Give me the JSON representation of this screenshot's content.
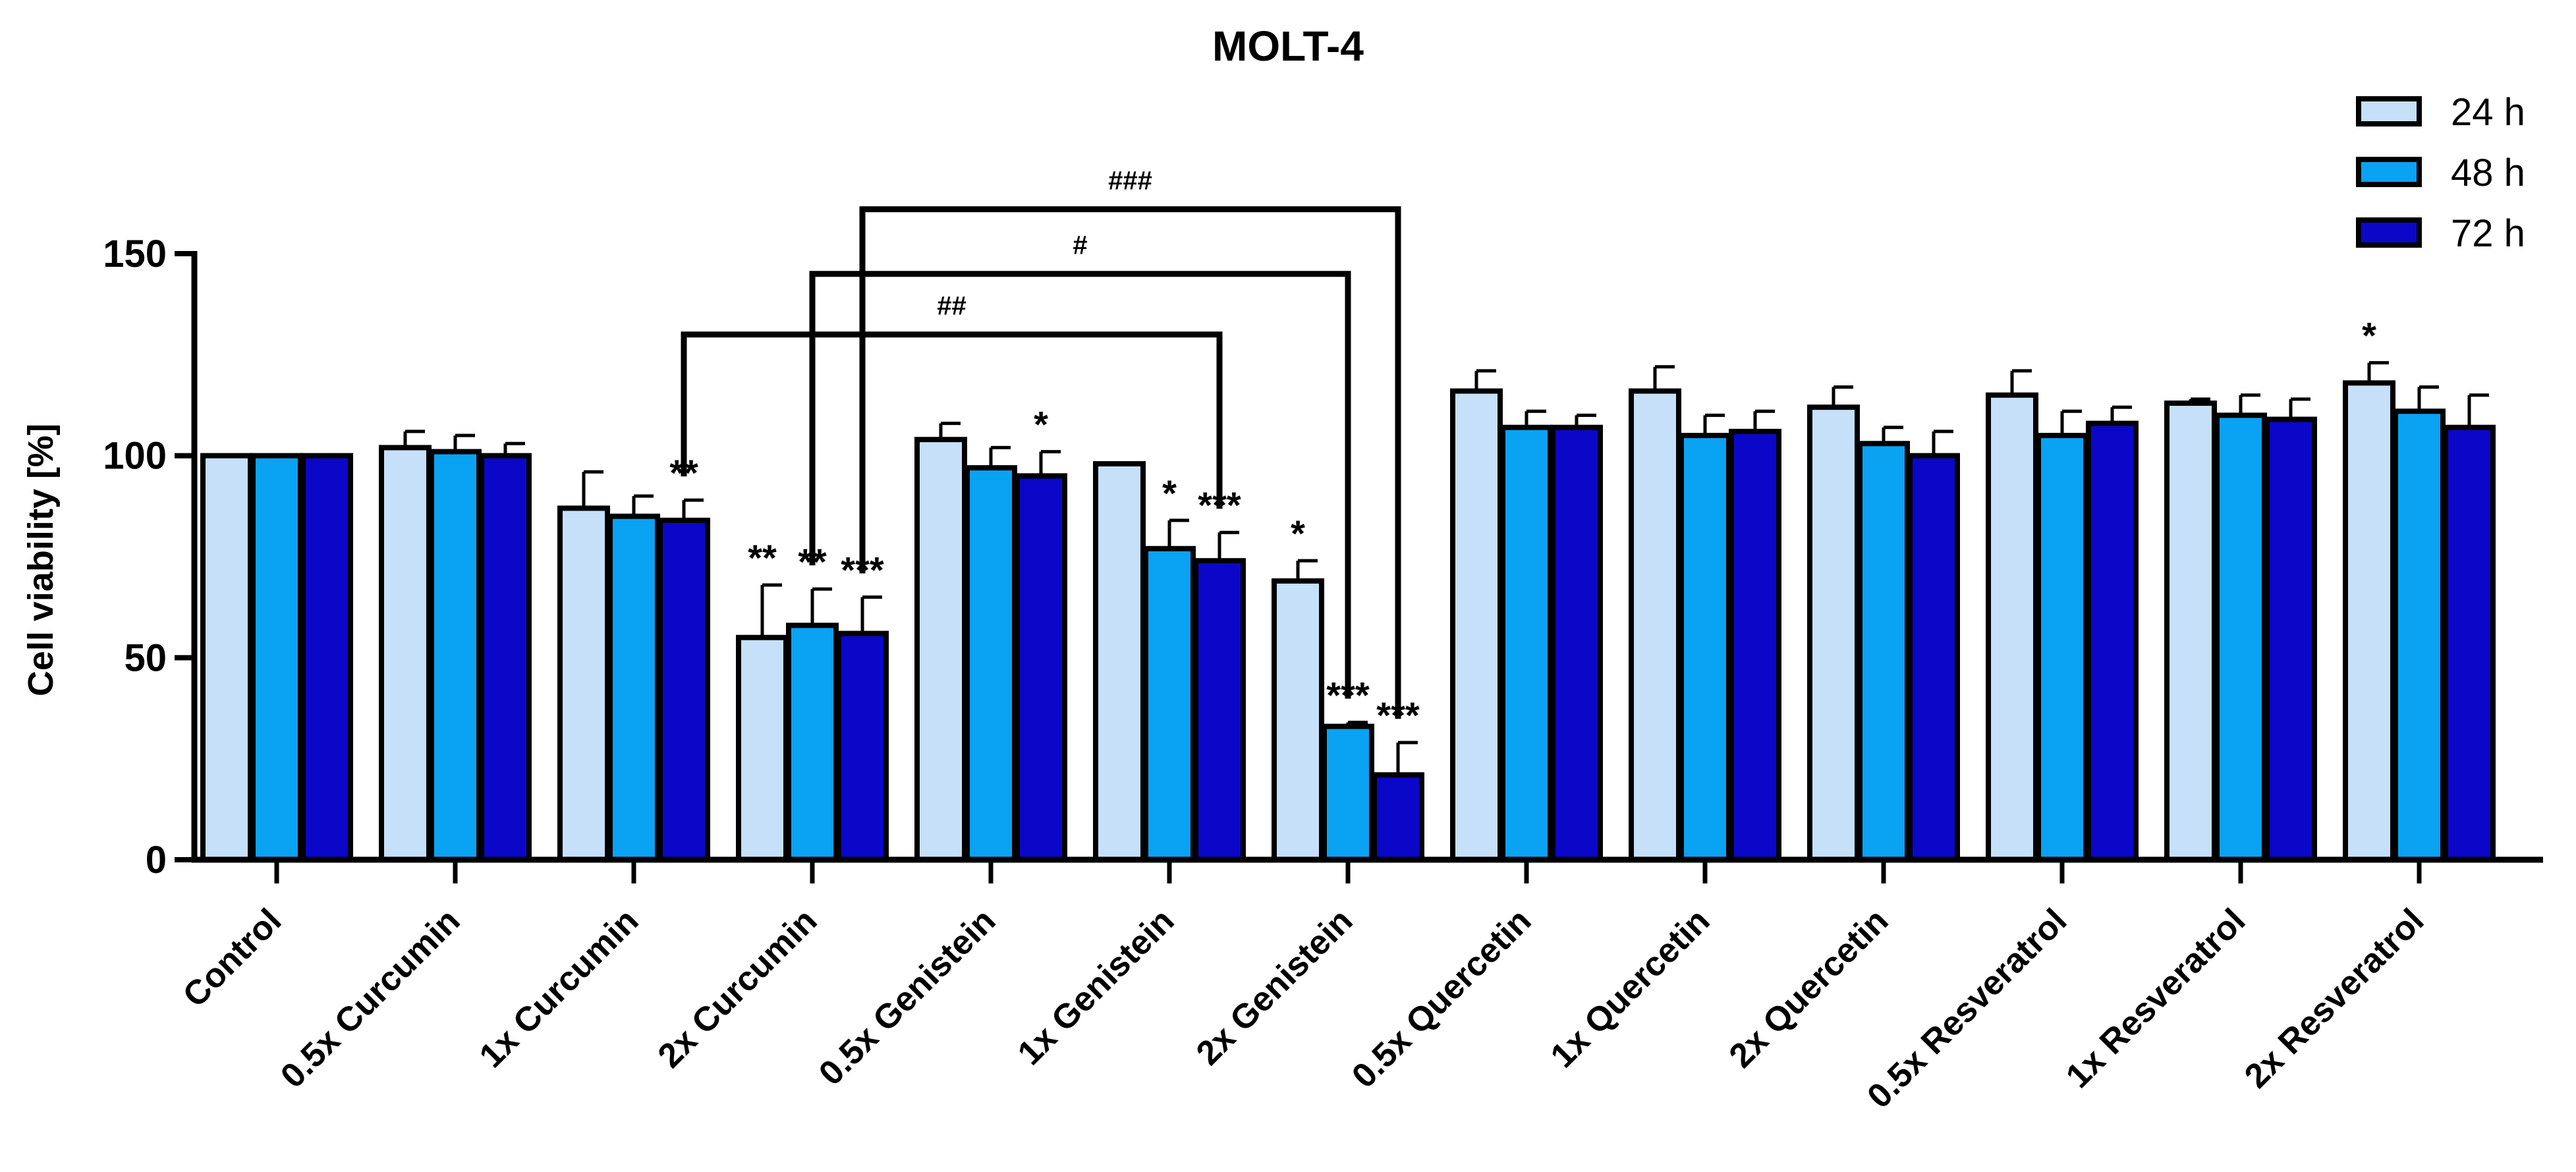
{
  "chart_data": {
    "type": "bar",
    "title": "MOLT-4",
    "xlabel": "",
    "ylabel": "Cell viability [%]",
    "ylim": [
      0,
      150
    ],
    "yticks": [
      0,
      50,
      100,
      150
    ],
    "grid": false,
    "legend_position": "top-right",
    "categories": [
      "Control",
      "0.5x Curcumin",
      "1x Curcumin",
      "2x Curcumin",
      "0.5x Genistein",
      "1x Genistein",
      "2x Genistein",
      "0.5x Quercetin",
      "1x Quercetin",
      "2x Quercetin",
      "0.5x Resveratrol",
      "1x Resveratrol",
      "2x Resveratrol"
    ],
    "series": [
      {
        "name": "24 h",
        "color": "#c6e0fa",
        "values": [
          100,
          102,
          87,
          55,
          104,
          98,
          69,
          116,
          116,
          112,
          115,
          113,
          118
        ],
        "errors": [
          0,
          4,
          9,
          13,
          4,
          0,
          5,
          5,
          6,
          5,
          6,
          1,
          5
        ],
        "significance": [
          "",
          "",
          "",
          "**",
          "",
          "",
          "*",
          "",
          "",
          "",
          "",
          "",
          "*"
        ]
      },
      {
        "name": "48 h",
        "color": "#0aa2f2",
        "values": [
          100,
          101,
          85,
          58,
          97,
          77,
          33,
          107,
          105,
          103,
          105,
          110,
          111
        ],
        "errors": [
          0,
          4,
          5,
          9,
          5,
          7,
          1,
          4,
          5,
          4,
          6,
          5,
          6
        ],
        "significance": [
          "",
          "",
          "",
          "**",
          "",
          "*",
          "***",
          "",
          "",
          "",
          "",
          "",
          ""
        ]
      },
      {
        "name": "72 h",
        "color": "#0b07c9",
        "values": [
          100,
          100,
          84,
          56,
          95,
          74,
          21,
          107,
          106,
          100,
          108,
          109,
          107
        ],
        "errors": [
          0,
          3,
          5,
          9,
          6,
          7,
          8,
          3,
          5,
          6,
          4,
          5,
          8
        ],
        "significance": [
          "",
          "",
          "**",
          "***",
          "*",
          "***",
          "***",
          "",
          "",
          "",
          "",
          "",
          ""
        ]
      }
    ],
    "comparisons": [
      {
        "from": "1x Curcumin",
        "from_series": "72 h",
        "to": "1x Genistein",
        "to_series": "72 h",
        "label": "##",
        "level": 130
      },
      {
        "from": "2x Curcumin",
        "from_series": "48 h",
        "to": "2x Genistein",
        "to_series": "48 h",
        "label": "#",
        "level": 145
      },
      {
        "from": "2x Curcumin",
        "from_series": "72 h",
        "to": "2x Genistein",
        "to_series": "72 h",
        "label": "###",
        "level": 161
      }
    ]
  }
}
